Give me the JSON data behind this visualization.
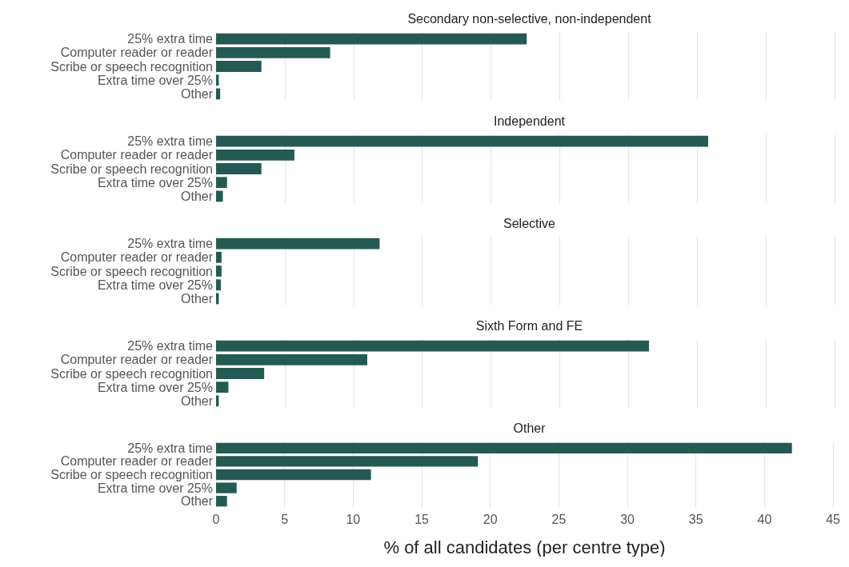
{
  "chart_data": [
    {
      "type": "bar",
      "orientation": "horizontal",
      "title": "Secondary non-selective, non-independent",
      "categories": [
        "25% extra time",
        "Computer reader or reader",
        "Scribe or speech recognition",
        "Extra time over 25%",
        "Other"
      ],
      "values": [
        22.6,
        8.3,
        3.3,
        0.2,
        0.3
      ],
      "color": "#245a53",
      "xlim": [
        0,
        45
      ],
      "xticks": [
        0,
        5,
        10,
        15,
        20,
        25,
        30,
        35,
        40,
        45
      ],
      "grid": "x",
      "tick_labels": "y"
    },
    {
      "type": "bar",
      "orientation": "horizontal",
      "title": "Independent",
      "categories": [
        "25% extra time",
        "Computer reader or reader",
        "Scribe or speech recognition",
        "Extra time over 25%",
        "Other"
      ],
      "values": [
        35.8,
        5.7,
        3.3,
        0.8,
        0.5
      ],
      "color": "#245a53",
      "xlim": [
        0,
        45
      ],
      "xticks": [
        0,
        5,
        10,
        15,
        20,
        25,
        30,
        35,
        40,
        45
      ],
      "grid": "x",
      "tick_labels": "y"
    },
    {
      "type": "bar",
      "orientation": "horizontal",
      "title": "Selective",
      "categories": [
        "25% extra time",
        "Computer reader or reader",
        "Scribe or speech recognition",
        "Extra time over 25%",
        "Other"
      ],
      "values": [
        11.9,
        0.4,
        0.4,
        0.35,
        0.2
      ],
      "color": "#245a53",
      "xlim": [
        0,
        45
      ],
      "xticks": [
        0,
        5,
        10,
        15,
        20,
        25,
        30,
        35,
        40,
        45
      ],
      "grid": "x",
      "tick_labels": "y"
    },
    {
      "type": "bar",
      "orientation": "horizontal",
      "title": "Sixth Form and FE",
      "categories": [
        "25% extra time",
        "Computer reader or reader",
        "Scribe or speech recognition",
        "Extra time over 25%",
        "Other"
      ],
      "values": [
        31.5,
        11.0,
        3.5,
        0.9,
        0.2
      ],
      "color": "#245a53",
      "xlim": [
        0,
        45
      ],
      "xticks": [
        0,
        5,
        10,
        15,
        20,
        25,
        30,
        35,
        40,
        45
      ],
      "grid": "x",
      "tick_labels": "y"
    },
    {
      "type": "bar",
      "orientation": "horizontal",
      "title": "Other",
      "xlabel": "% of all candidates (per centre type)",
      "categories": [
        "25% extra time",
        "Computer reader or reader",
        "Scribe or speech recognition",
        "Extra time over 25%",
        "Other"
      ],
      "values": [
        42.0,
        19.1,
        11.3,
        1.5,
        0.8
      ],
      "color": "#245a53",
      "xlim": [
        0,
        45
      ],
      "xticks": [
        0,
        5,
        10,
        15,
        20,
        25,
        30,
        35,
        40,
        45
      ],
      "grid": "x"
    }
  ]
}
